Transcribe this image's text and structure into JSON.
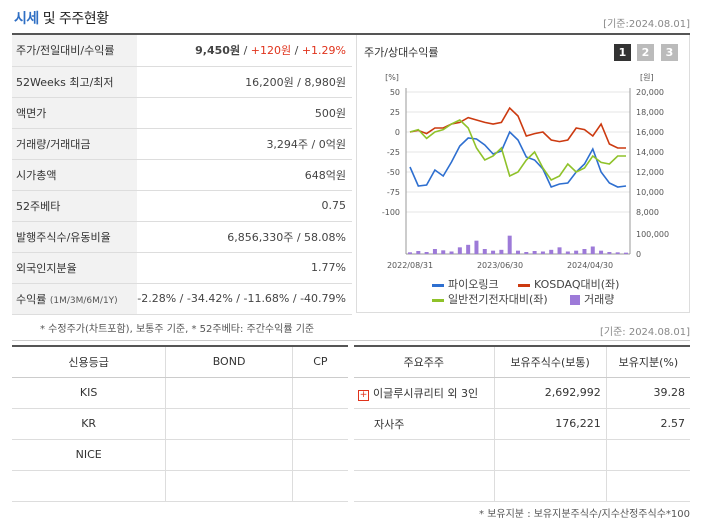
{
  "header": {
    "title_hl": "시세",
    "title_rest": " 및 주주현황",
    "basedate": "[기준:2024.08.01]"
  },
  "price_rows": [
    {
      "label": "주가/전일대비/수익률",
      "v1": "9,450원",
      "sep1": " / ",
      "v2": "+120원",
      "sep2": " / ",
      "v3": "+1.29%"
    },
    {
      "label": "52Weeks 최고/최저",
      "value": "16,200원 / 8,980원"
    },
    {
      "label": "액면가",
      "value": "500원"
    },
    {
      "label": "거래량/거래대금",
      "value": "3,294주 / 0억원"
    },
    {
      "label": "시가총액",
      "value": "648억원"
    },
    {
      "label": "52주베타",
      "value": "0.75"
    },
    {
      "label": "발행주식수/유동비율",
      "value": "6,856,330주 / 58.08%"
    },
    {
      "label": "외국인지분율",
      "value": "1.77%"
    },
    {
      "label": "수익률",
      "label_small": "(1M/3M/6M/1Y)",
      "value": "-2.28% / -34.42% / -11.68% / -40.79%"
    }
  ],
  "note1": "* 수정주가(차트포함), 보통주 기준, * 52주베타: 주간수익률 기준",
  "chart": {
    "title": "주가/상대수익률",
    "pages": [
      "1",
      "2",
      "3"
    ],
    "left_unit": "[%]",
    "right_unit": "[원]",
    "left_ticks": [
      "50",
      "25",
      "0",
      "-25",
      "-50",
      "-75",
      "-100"
    ],
    "right_ticks": [
      "20,000",
      "18,000",
      "16,000",
      "14,000",
      "12,000",
      "10,000",
      "8,000"
    ],
    "vol_ticks": [
      "100,000",
      "0"
    ],
    "x_ticks": [
      "2022/08/31",
      "2023/06/30",
      "2024/04/30"
    ],
    "legend": [
      "파이오링크",
      "KOSDAQ대비(좌)",
      "일반전기전자대비(좌)",
      "거래량"
    ],
    "colors": {
      "stock": "#2e6fd0",
      "kosdaq": "#cc3a10",
      "sector": "#8fc22a",
      "volume": "#9d7ad8"
    }
  },
  "chart_data": {
    "type": "line",
    "x_labels": [
      "2022/08/31",
      "2023/06/30",
      "2024/04/30"
    ],
    "series": [
      {
        "name": "파이오링크",
        "axis": "right",
        "values": [
          12500,
          10600,
          10700,
          12200,
          11600,
          13000,
          14600,
          15400,
          15300,
          14700,
          13800,
          14100,
          16000,
          15200,
          13500,
          13200,
          12300,
          10500,
          10800,
          10900,
          12000,
          12800,
          14300,
          12000,
          10900,
          10500,
          10600
        ]
      },
      {
        "name": "KOSDAQ대비(좌)",
        "axis": "left",
        "values": [
          0,
          2,
          -2,
          5,
          5,
          10,
          12,
          18,
          15,
          12,
          10,
          12,
          30,
          20,
          -5,
          -2,
          0,
          -10,
          -12,
          -10,
          5,
          3,
          -5,
          10,
          -15,
          -20,
          -20
        ]
      },
      {
        "name": "일반전기전자대비(좌)",
        "axis": "left",
        "values": [
          0,
          3,
          -8,
          0,
          3,
          10,
          15,
          5,
          -20,
          -35,
          -30,
          -20,
          -55,
          -50,
          -35,
          -25,
          -45,
          -60,
          -55,
          -40,
          -50,
          -45,
          -30,
          -38,
          -40,
          -30,
          -30
        ]
      },
      {
        "name": "거래량",
        "axis": "volume",
        "values": [
          10000,
          18000,
          12000,
          30000,
          22000,
          15000,
          40000,
          55000,
          80000,
          30000,
          20000,
          25000,
          110000,
          20000,
          12000,
          18000,
          15000,
          25000,
          40000,
          15000,
          20000,
          30000,
          45000,
          20000,
          12000,
          10000,
          8000
        ]
      }
    ],
    "ylim_left": [
      -100,
      50
    ],
    "ylim_right": [
      8000,
      20000
    ]
  },
  "basedate2": "[기준: 2024.08.01]",
  "credit": {
    "headers": [
      "신용등급",
      "BOND",
      "CP"
    ],
    "rows": [
      [
        "KIS",
        "",
        ""
      ],
      [
        "KR",
        "",
        ""
      ],
      [
        "NICE",
        "",
        ""
      ],
      [
        "",
        "",
        ""
      ]
    ]
  },
  "holders": {
    "headers": [
      "주요주주",
      "보유주식수(보통)",
      "보유지분(%)"
    ],
    "rows": [
      {
        "name": "이글루시큐리티 외 3인",
        "shares": "2,692,992",
        "pct": "39.28"
      },
      {
        "name": "자사주",
        "shares": "176,221",
        "pct": "2.57"
      },
      {
        "name": "",
        "shares": "",
        "pct": ""
      },
      {
        "name": "",
        "shares": "",
        "pct": ""
      }
    ]
  },
  "note2": "* 보유지분 : 보유지분주식수/지수산정주식수*100"
}
